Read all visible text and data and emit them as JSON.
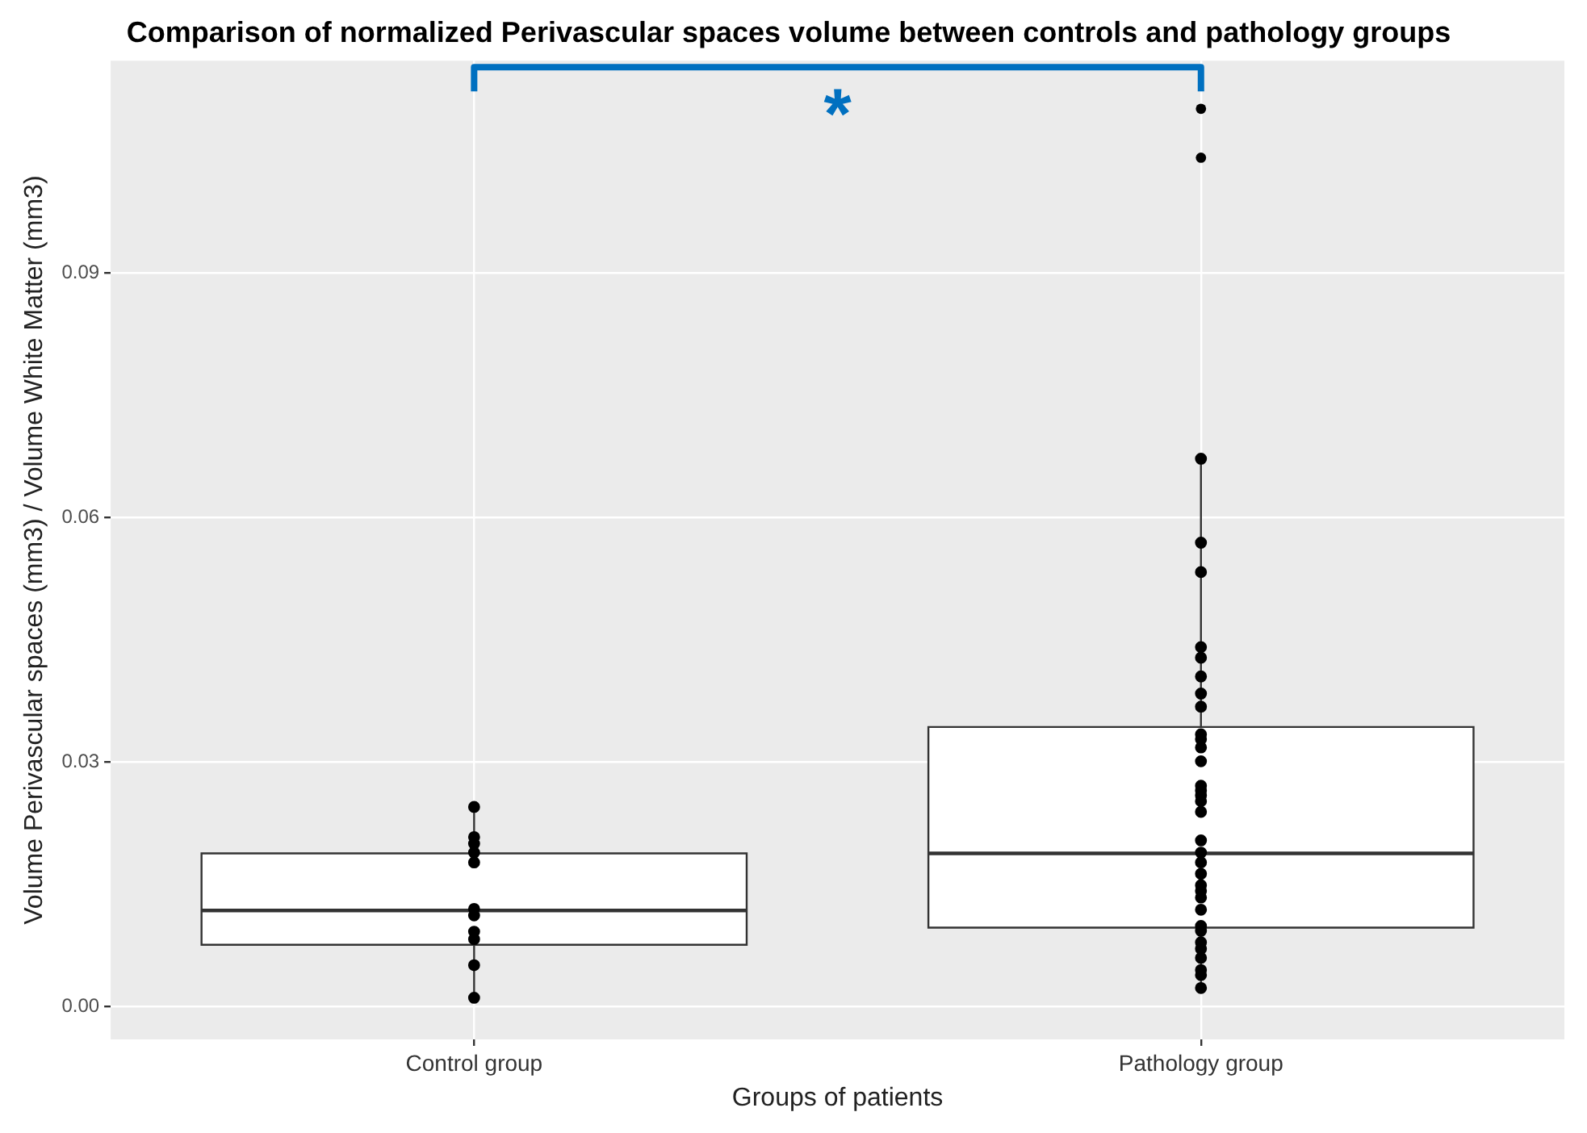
{
  "chart_data": {
    "type": "box",
    "title": "Comparison of normalized Perivascular spaces volume between controls and pathology groups",
    "xlabel": "Groups of patients",
    "ylabel": "Volume Perivascular spaces (mm3) / Volume White Matter (mm3)",
    "categories": [
      "Control group",
      "Pathology group"
    ],
    "boxes": [
      {
        "low": 0.001,
        "q1": 0.0076,
        "median": 0.0118,
        "q3": 0.0188,
        "high": 0.0244
      },
      {
        "low": 0.0023,
        "q1": 0.0097,
        "median": 0.0188,
        "q3": 0.0343,
        "high": 0.0672,
        "outliers": [
          0.1041,
          0.1101
        ]
      }
    ],
    "series": [
      {
        "type": "scatter",
        "color": "#000000",
        "x": [
          "Control group",
          "Control group",
          "Control group",
          "Control group",
          "Control group",
          "Control group",
          "Control group",
          "Control group",
          "Control group",
          "Control group",
          "Control group",
          "Pathology group",
          "Pathology group",
          "Pathology group",
          "Pathology group",
          "Pathology group",
          "Pathology group",
          "Pathology group",
          "Pathology group",
          "Pathology group",
          "Pathology group",
          "Pathology group",
          "Pathology group",
          "Pathology group",
          "Pathology group",
          "Pathology group",
          "Pathology group",
          "Pathology group",
          "Pathology group",
          "Pathology group",
          "Pathology group",
          "Pathology group",
          "Pathology group",
          "Pathology group",
          "Pathology group",
          "Pathology group",
          "Pathology group",
          "Pathology group",
          "Pathology group",
          "Pathology group",
          "Pathology group",
          "Pathology group",
          "Pathology group",
          "Pathology group",
          "Pathology group"
        ],
        "values": [
          0.0245,
          0.0208,
          0.02,
          0.0189,
          0.0177,
          0.012,
          0.0112,
          0.0092,
          0.0083,
          0.0051,
          0.0011,
          0.0672,
          0.0569,
          0.0533,
          0.0441,
          0.0428,
          0.0405,
          0.0384,
          0.0368,
          0.0334,
          0.0328,
          0.0318,
          0.0301,
          0.0271,
          0.0265,
          0.0259,
          0.0252,
          0.0239,
          0.0204,
          0.0189,
          null,
          0.0177,
          0.0163,
          0.0149,
          0.0142,
          0.0134,
          0.0119,
          0.0099,
          0.0093,
          0.0079,
          0.0071,
          0.006,
          0.0045,
          0.0039,
          0.0023
        ]
      }
    ],
    "ylim": [
      -0.004,
      0.116
    ],
    "yticks": [
      {
        "value": 0,
        "label": "0.00"
      },
      {
        "value": 0.03,
        "label": "0.03"
      },
      {
        "value": 0.06,
        "label": "0.06"
      },
      {
        "value": 0.09,
        "label": "0.09"
      }
    ],
    "grid": true,
    "marker": "circle",
    "annotations": [
      {
        "text": "*"
      }
    ]
  }
}
